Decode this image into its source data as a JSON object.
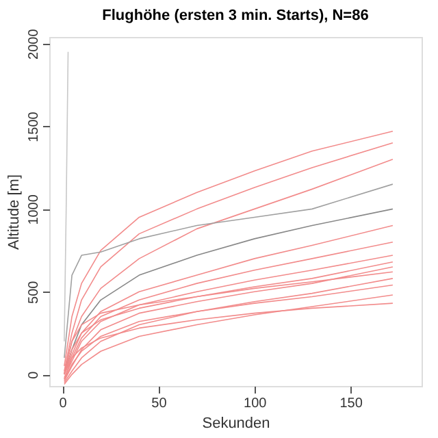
{
  "chart_data": {
    "type": "line",
    "title": "Flughöhe (ersten 3 min. Starts), N=86",
    "xlabel": "Sekunden",
    "ylabel": "Altitude [m]",
    "xlim": [
      -6.8,
      187
    ],
    "ylim": [
      -70,
      2040
    ],
    "xticks": [
      0,
      50,
      100,
      150
    ],
    "yticks": [
      0,
      500,
      1000,
      1500,
      2000
    ],
    "grid": false,
    "legend": false,
    "marker": "none",
    "line_style": "solid",
    "x": [
      1,
      5,
      10,
      20,
      40,
      70,
      100,
      130,
      172
    ],
    "series": [
      {
        "color": "#f28b8b",
        "values": [
          50,
          350,
          550,
          750,
          950,
          1100,
          1230,
          1350,
          1470
        ]
      },
      {
        "color": "#f28b8b",
        "values": [
          20,
          250,
          450,
          650,
          850,
          1000,
          1130,
          1250,
          1400
        ]
      },
      {
        "color": "#f28b8b",
        "values": [
          0,
          200,
          350,
          520,
          700,
          880,
          1000,
          1120,
          1300
        ]
      },
      {
        "color": "#a0a0a0",
        "values": [
          100,
          600,
          720,
          740,
          820,
          900,
          950,
          1000,
          1150
        ]
      },
      {
        "color": "#888888",
        "values": [
          0,
          150,
          300,
          450,
          600,
          720,
          820,
          900,
          1000
        ]
      },
      {
        "color": "#f28b8b",
        "values": [
          0,
          120,
          250,
          380,
          500,
          600,
          700,
          780,
          900
        ]
      },
      {
        "color": "#f28b8b",
        "values": [
          -30,
          100,
          220,
          350,
          450,
          550,
          630,
          700,
          800
        ]
      },
      {
        "color": "#f28b8b",
        "values": [
          -20,
          80,
          200,
          320,
          420,
          500,
          570,
          630,
          720
        ]
      },
      {
        "color": "#f28b8b",
        "values": [
          0,
          150,
          250,
          330,
          400,
          470,
          530,
          580,
          680
        ]
      },
      {
        "color": "#f28b8b",
        "values": [
          -40,
          50,
          150,
          270,
          370,
          440,
          500,
          550,
          650
        ]
      },
      {
        "color": "#f28b8b",
        "values": [
          10,
          200,
          300,
          370,
          420,
          470,
          520,
          560,
          620
        ]
      },
      {
        "color": "#f28b8b",
        "values": [
          -50,
          20,
          100,
          200,
          300,
          380,
          440,
          490,
          580
        ]
      },
      {
        "color": "#f28b8b",
        "values": [
          -30,
          60,
          140,
          230,
          320,
          380,
          430,
          470,
          540
        ]
      },
      {
        "color": "#f28b8b",
        "values": [
          -60,
          0,
          60,
          140,
          230,
          300,
          360,
          410,
          480
        ]
      },
      {
        "color": "#f28b8b",
        "values": [
          0,
          100,
          160,
          220,
          280,
          330,
          370,
          400,
          430
        ]
      },
      {
        "color": "#c8c8c8",
        "x": [
          1,
          2,
          3
        ],
        "values": [
          200,
          1000,
          1950
        ]
      }
    ]
  }
}
